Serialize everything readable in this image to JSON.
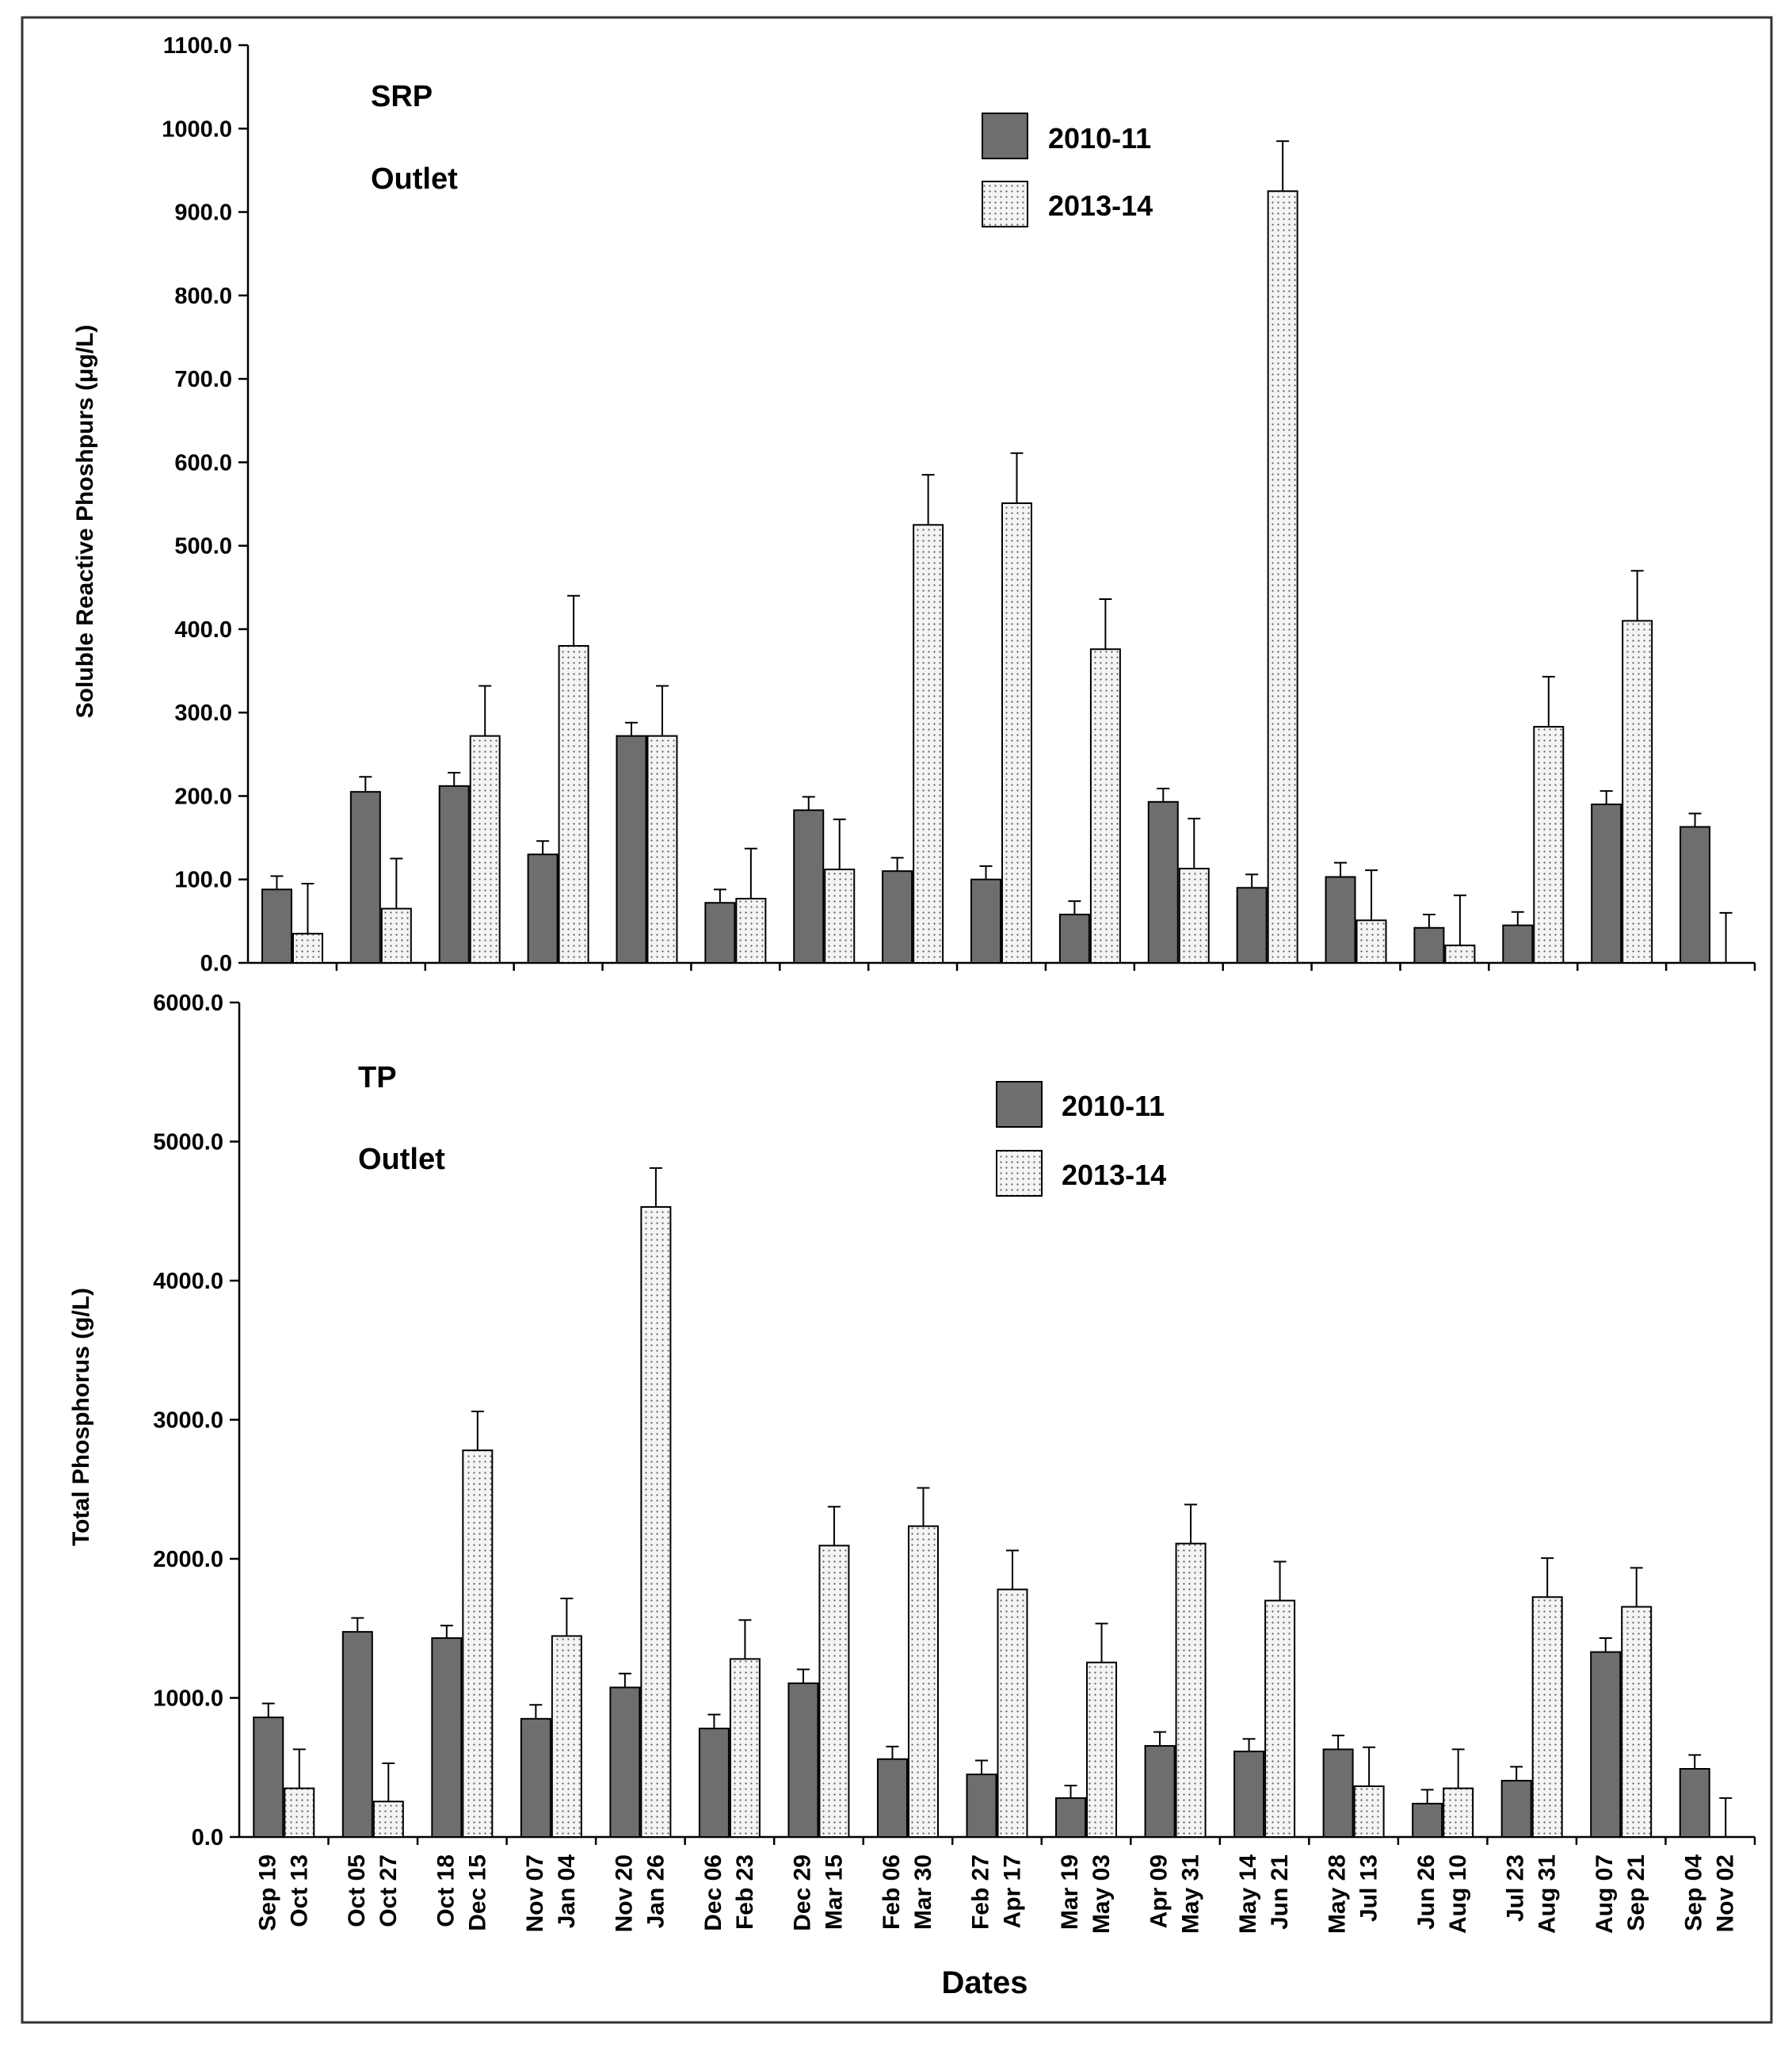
{
  "colors": {
    "series_2010": "#6e6e6e",
    "series_2013_bg": "#f4f4f4",
    "series_2013_dot": "#5a5a5a",
    "axis": "#000000",
    "frame": "#333333"
  },
  "categories": [
    [
      "Sep 19",
      "Oct 13"
    ],
    [
      "Oct 05",
      "Oct 27"
    ],
    [
      "Oct 18",
      "Dec 15"
    ],
    [
      "Nov 07",
      "Jan 04"
    ],
    [
      "Nov 20",
      "Jan 26"
    ],
    [
      "Dec 06",
      "Feb 23"
    ],
    [
      "Dec 29",
      "Mar 15"
    ],
    [
      "Feb 06",
      "Mar 30"
    ],
    [
      "Feb 27",
      "Apr 17"
    ],
    [
      "Mar 19",
      "May 03"
    ],
    [
      "Apr 09",
      "May 31"
    ],
    [
      "May 14",
      "Jun 21"
    ],
    [
      "May 28",
      "Jul 13"
    ],
    [
      "Jun 26",
      "Aug 10"
    ],
    [
      "Jul 23",
      "Aug 31"
    ],
    [
      "Aug 07",
      "Sep 21"
    ],
    [
      "Sep 04",
      "Nov 02"
    ]
  ],
  "xlabel": "Dates",
  "chart_data": [
    {
      "type": "bar",
      "title": "SRP",
      "subtitle": "Outlet",
      "ylabel": "Soluble Reactive Phoshpurs (μg/L)",
      "ylim": [
        0,
        1100
      ],
      "yticks": [
        "0.0",
        "100.0",
        "200.0",
        "300.0",
        "400.0",
        "500.0",
        "600.0",
        "700.0",
        "800.0",
        "900.0",
        "1000.0",
        "1100.0"
      ],
      "legend": "top-center",
      "series": [
        {
          "name": "2010-11",
          "values": [
            88,
            205,
            212,
            130,
            272,
            72,
            183,
            110,
            100,
            58,
            193,
            90,
            103,
            42,
            45,
            190,
            163
          ],
          "errors": [
            16,
            18,
            16,
            16,
            16,
            16,
            16,
            16,
            16,
            16,
            16,
            16,
            17,
            16,
            16,
            16,
            16
          ]
        },
        {
          "name": "2013-14",
          "values": [
            35,
            65,
            272,
            380,
            272,
            77,
            112,
            525,
            551,
            376,
            113,
            925,
            51,
            21,
            283,
            410,
            0
          ],
          "errors": [
            60,
            60,
            60,
            60,
            60,
            60,
            60,
            60,
            60,
            60,
            60,
            60,
            60,
            60,
            60,
            60,
            60
          ]
        }
      ]
    },
    {
      "type": "bar",
      "title": "TP",
      "subtitle": "Outlet",
      "ylabel": "Total Phosphorus (g/L)",
      "ylim": [
        0,
        6000
      ],
      "yticks": [
        "0.0",
        "1000.0",
        "2000.0",
        "3000.0",
        "4000.0",
        "5000.0",
        "6000.0"
      ],
      "legend": "top-center",
      "series": [
        {
          "name": "2010-11",
          "values": [
            860,
            1475,
            1430,
            850,
            1075,
            780,
            1105,
            560,
            450,
            280,
            655,
            615,
            630,
            240,
            405,
            1330,
            490
          ],
          "errors": [
            100,
            100,
            90,
            100,
            100,
            100,
            100,
            90,
            100,
            90,
            100,
            90,
            100,
            100,
            100,
            100,
            100
          ]
        },
        {
          "name": "2013-14",
          "values": [
            350,
            255,
            2780,
            1445,
            4530,
            1280,
            2095,
            2235,
            1780,
            1255,
            2110,
            1700,
            365,
            350,
            1725,
            1655,
            0
          ],
          "errors": [
            280,
            275,
            280,
            270,
            280,
            280,
            280,
            275,
            280,
            280,
            280,
            280,
            280,
            280,
            280,
            280,
            280
          ]
        }
      ]
    }
  ]
}
